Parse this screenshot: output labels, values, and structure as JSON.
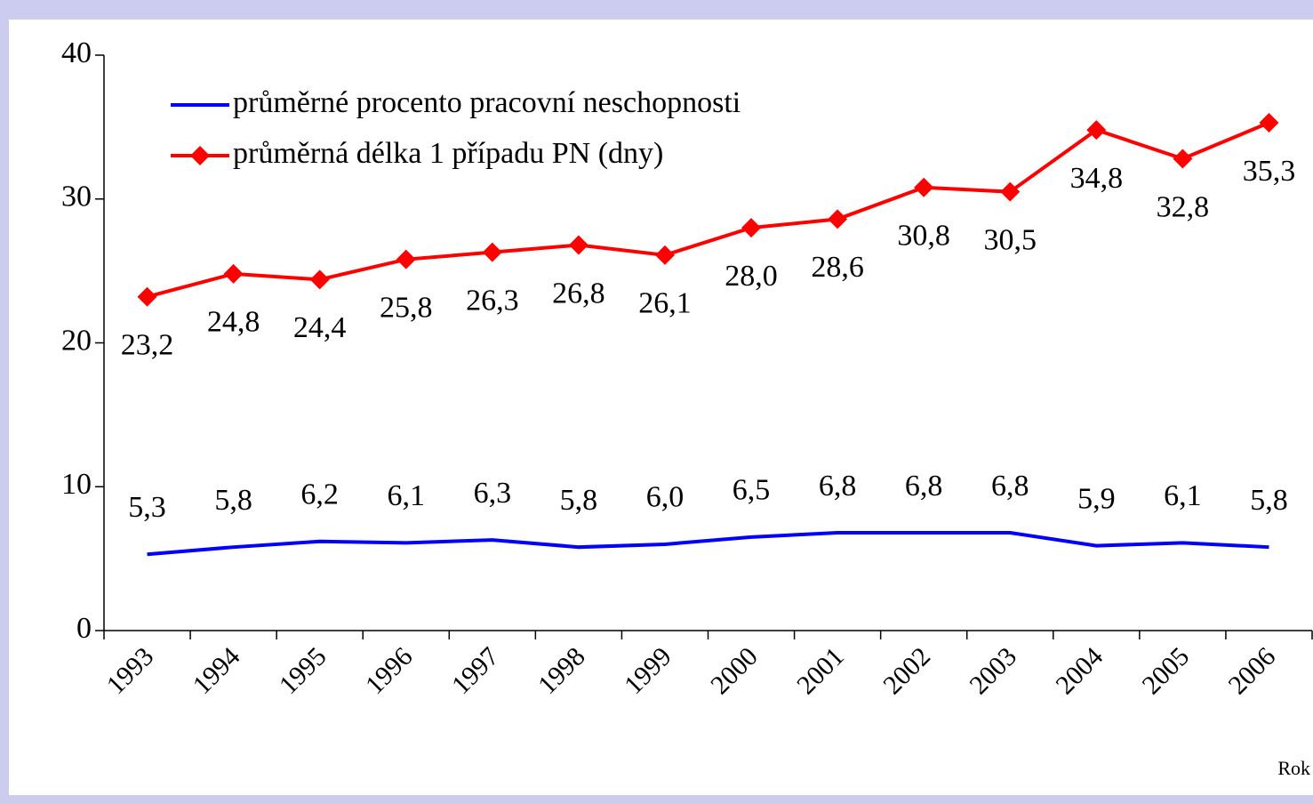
{
  "chart_data": {
    "type": "line",
    "x_label": "Rok",
    "categories": [
      "1993",
      "1994",
      "1995",
      "1996",
      "1997",
      "1998",
      "1999",
      "2000",
      "2001",
      "2002",
      "2003",
      "2004",
      "2005",
      "2006"
    ],
    "series": [
      {
        "name": "průměrné procento pracovní neschopnosti",
        "color": "#0000ff",
        "marker": "none",
        "values": [
          5.3,
          5.8,
          6.2,
          6.1,
          6.3,
          5.8,
          6.0,
          6.5,
          6.8,
          6.8,
          6.8,
          5.9,
          6.1,
          5.8
        ],
        "value_labels": [
          "5,3",
          "5,8",
          "6,2",
          "6,1",
          "6,3",
          "5,8",
          "6,0",
          "6,5",
          "6,8",
          "6,8",
          "6,8",
          "5,9",
          "6,1",
          "5,8"
        ]
      },
      {
        "name": "průměrná délka 1 případu PN (dny)",
        "color": "#ff0000",
        "marker": "diamond",
        "values": [
          23.2,
          24.8,
          24.4,
          25.8,
          26.3,
          26.8,
          26.1,
          28.0,
          28.6,
          30.8,
          30.5,
          34.8,
          32.8,
          35.3
        ],
        "value_labels": [
          "23,2",
          "24,8",
          "24,4",
          "25,8",
          "26,3",
          "26,8",
          "26,1",
          "28,0",
          "28,6",
          "30,8",
          "30,5",
          "34,8",
          "32,8",
          "35,3"
        ]
      }
    ],
    "ylim": [
      0,
      40
    ],
    "yticks": [
      0,
      10,
      20,
      30,
      40
    ],
    "grid": false,
    "legend": "top-left"
  }
}
